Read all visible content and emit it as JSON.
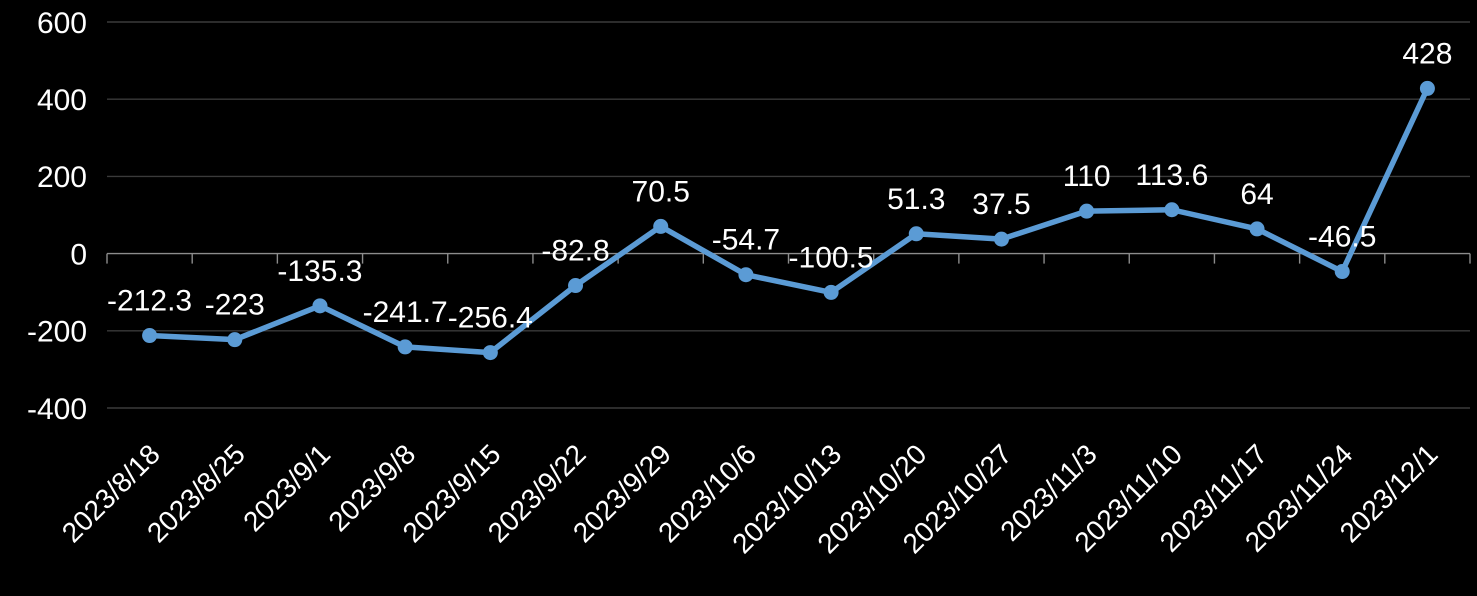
{
  "chart_data": {
    "type": "line",
    "title": "",
    "xlabel": "",
    "ylabel": "",
    "categories": [
      "2023/8/18",
      "2023/8/25",
      "2023/9/1",
      "2023/9/8",
      "2023/9/15",
      "2023/9/22",
      "2023/9/29",
      "2023/10/6",
      "2023/10/13",
      "2023/10/20",
      "2023/10/27",
      "2023/11/3",
      "2023/11/10",
      "2023/11/17",
      "2023/11/24",
      "2023/12/1"
    ],
    "values": [
      -212.3,
      -223,
      -135.3,
      -241.7,
      -256.4,
      -82.8,
      70.5,
      -54.7,
      -100.5,
      51.3,
      37.5,
      110,
      113.6,
      64,
      -46.5,
      428
    ],
    "data_labels": [
      "-212.3",
      "-223",
      "-135.3",
      "-241.7",
      "-256.4",
      "-82.8",
      "70.5",
      "-54.7",
      "-100.5",
      "51.3",
      "37.5",
      "110",
      "113.6",
      "64",
      "-46.5",
      "428"
    ],
    "y_ticks": [
      600,
      400,
      200,
      0,
      -200,
      -400
    ],
    "y_tick_labels": [
      "600",
      "400",
      "200",
      "0",
      "-200",
      "-400"
    ],
    "ylim": [
      -400,
      600
    ],
    "grid": true,
    "legend": false,
    "marker": "circle",
    "colors": {
      "background": "#000000",
      "series_line": "#5B9BD5",
      "marker_fill": "#5B9BD5",
      "data_label_text": "#FFFFFF",
      "axis_tick_label_text": "#FFFFFF",
      "gridline": "#3A3A3A",
      "axis_line": "#8C8C8C"
    }
  }
}
